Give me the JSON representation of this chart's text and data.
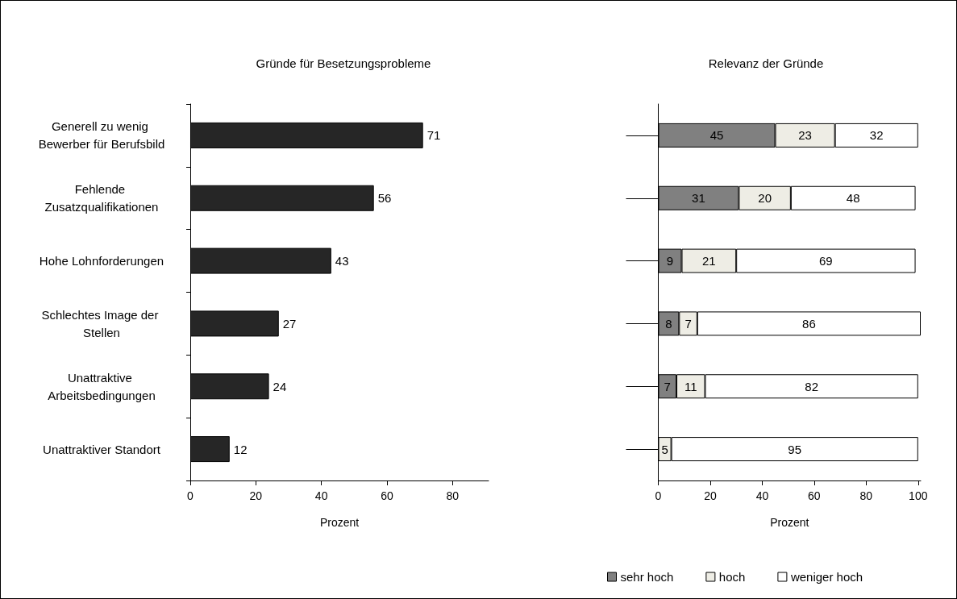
{
  "chart_data": [
    {
      "type": "bar",
      "orientation": "horizontal",
      "title": "Gründe für Besetzungsprobleme",
      "xlabel": "Prozent",
      "categories": [
        "Generell zu wenig Bewerber für Berufsbild",
        "Fehlende Zusatzqualifikationen",
        "Hohe Lohnforderungen",
        "Schlechtes Image der Stellen",
        "Unattraktive Arbeitsbedingungen",
        "Unattraktiver Standort"
      ],
      "values": [
        71,
        56,
        43,
        27,
        24,
        12
      ],
      "color": "#262626",
      "xlim": [
        0,
        91
      ],
      "xticks": [
        0,
        20,
        40,
        60,
        80
      ],
      "data_labels": true,
      "grid": false,
      "legend": false
    },
    {
      "type": "bar",
      "orientation": "horizontal",
      "stacked": true,
      "title": "Relevanz der Gründe",
      "xlabel": "Prozent",
      "categories": [
        null,
        null,
        null,
        null,
        null,
        null
      ],
      "series": [
        {
          "name": "sehr hoch",
          "color": "#808080",
          "values": [
            45,
            31,
            9,
            8,
            7,
            null
          ]
        },
        {
          "name": "hoch",
          "color": "#eeede5",
          "values": [
            23,
            20,
            21,
            7,
            11,
            5
          ]
        },
        {
          "name": "weniger hoch",
          "color": "#ffffff",
          "values": [
            32,
            48,
            69,
            86,
            82,
            95
          ]
        }
      ],
      "xlim": [
        0,
        101
      ],
      "xticks": [
        0,
        20,
        40,
        60,
        80,
        100
      ],
      "data_labels": true,
      "grid": false,
      "legend": "bottom"
    }
  ]
}
